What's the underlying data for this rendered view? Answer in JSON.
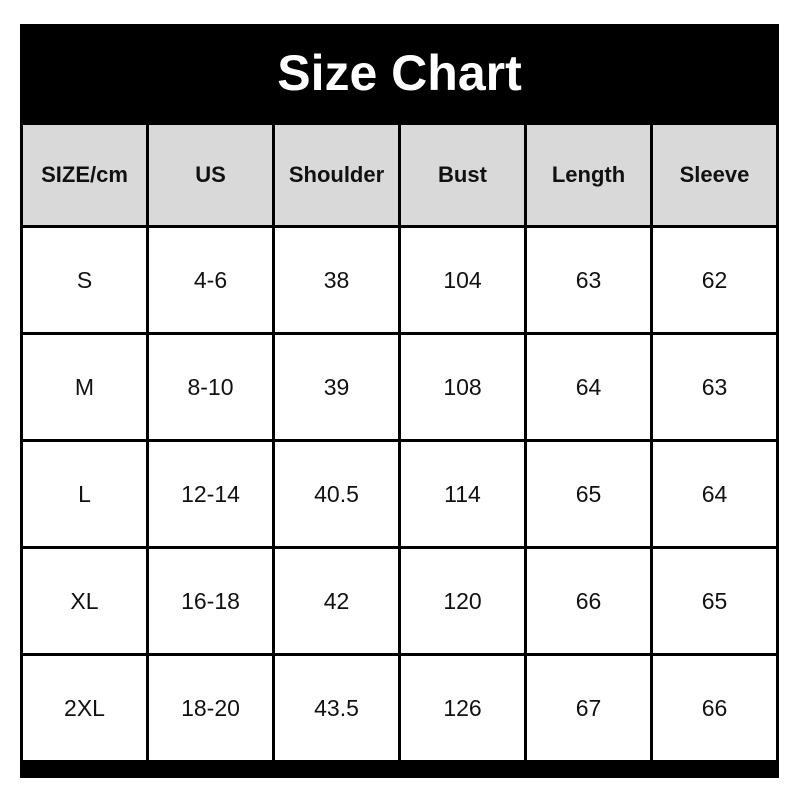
{
  "title": "Size Chart",
  "headers": [
    "SIZE/cm",
    "US",
    "Shoulder",
    "Bust",
    "Length",
    "Sleeve"
  ],
  "rows": [
    [
      "S",
      "4-6",
      "38",
      "104",
      "63",
      "62"
    ],
    [
      "M",
      "8-10",
      "39",
      "108",
      "64",
      "63"
    ],
    [
      "L",
      "12-14",
      "40.5",
      "114",
      "65",
      "64"
    ],
    [
      "XL",
      "16-18",
      "42",
      "120",
      "66",
      "65"
    ],
    [
      "2XL",
      "18-20",
      "43.5",
      "126",
      "67",
      "66"
    ]
  ],
  "colors": {
    "title_bg": "#000000",
    "header_bg": "#d9d9d9"
  }
}
